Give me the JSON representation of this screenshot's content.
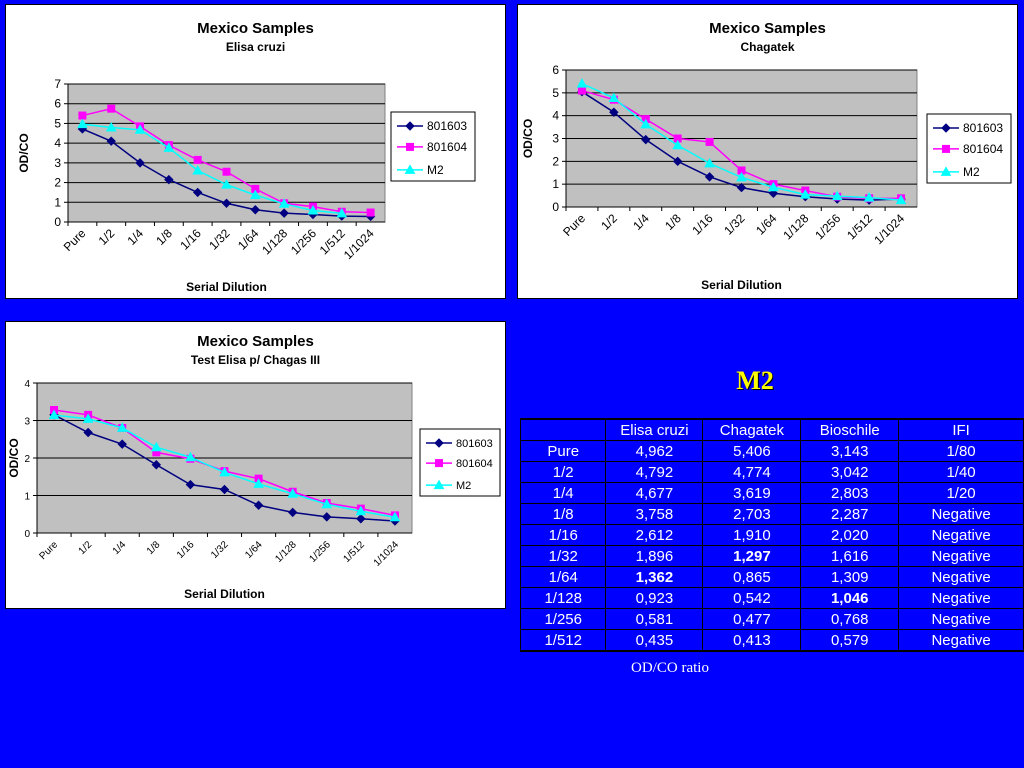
{
  "chart_data": [
    {
      "type": "line",
      "title": "Mexico Samples",
      "subtitle": "Elisa cruzi",
      "xlabel": "Serial Dilution",
      "ylabel": "OD/CO",
      "ylim": [
        0,
        7
      ],
      "yticks": [
        "0",
        "1",
        "2",
        "3",
        "4",
        "5",
        "6",
        "7"
      ],
      "categories": [
        "Pure",
        "1/2",
        "1/4",
        "1/8",
        "1/16",
        "1/32",
        "1/64",
        "1/128",
        "1/256",
        "1/512",
        "1/1024"
      ],
      "grid": true,
      "legend": "right",
      "series": [
        {
          "name": "801603",
          "color": "#000080",
          "marker": "diamond",
          "values": [
            4.72,
            4.1,
            3.0,
            2.15,
            1.5,
            0.95,
            0.62,
            0.45,
            0.38,
            0.3,
            0.28
          ]
        },
        {
          "name": "801604",
          "color": "#FF00FF",
          "marker": "square",
          "values": [
            5.4,
            5.75,
            4.85,
            3.9,
            3.15,
            2.55,
            1.68,
            0.95,
            0.78,
            0.52,
            0.48
          ]
        },
        {
          "name": "M2",
          "color": "#00FFFF",
          "marker": "triangle",
          "values": [
            4.962,
            4.792,
            4.677,
            3.758,
            2.612,
            1.896,
            1.362,
            0.923,
            0.581,
            0.435,
            null
          ]
        }
      ]
    },
    {
      "type": "line",
      "title": "Mexico Samples",
      "subtitle": "Chagatek",
      "xlabel": "Serial Dilution",
      "ylabel": "OD/CO",
      "ylim": [
        0,
        6
      ],
      "yticks": [
        "0",
        "1",
        "2",
        "3",
        "4",
        "5",
        "6"
      ],
      "categories": [
        "Pure",
        "1/2",
        "1/4",
        "1/8",
        "1/16",
        "1/32",
        "1/64",
        "1/128",
        "1/256",
        "1/512",
        "1/1024"
      ],
      "grid": true,
      "legend": "right",
      "series": [
        {
          "name": "801603",
          "color": "#000080",
          "marker": "diamond",
          "values": [
            5.05,
            4.15,
            2.95,
            2.0,
            1.32,
            0.85,
            0.6,
            0.45,
            0.35,
            0.3,
            0.35
          ]
        },
        {
          "name": "801604",
          "color": "#FF00FF",
          "marker": "square",
          "values": [
            5.1,
            4.7,
            3.85,
            3.0,
            2.85,
            1.6,
            1.0,
            0.72,
            0.45,
            0.38,
            0.38
          ]
        },
        {
          "name": "M2",
          "color": "#00FFFF",
          "marker": "triangle",
          "values": [
            5.406,
            4.774,
            3.619,
            2.703,
            1.91,
            1.297,
            0.865,
            0.542,
            0.477,
            0.413,
            0.3
          ]
        }
      ]
    },
    {
      "type": "line",
      "title": "Mexico Samples",
      "subtitle": "Test Elisa p/ Chagas III",
      "xlabel": "Serial Dilution",
      "ylabel": "OD/CO",
      "ylim": [
        0,
        4
      ],
      "yticks": [
        "0",
        "1",
        "2",
        "3",
        "4"
      ],
      "categories": [
        "Pure",
        "1/2",
        "1/4",
        "1/8",
        "1/16",
        "1/32",
        "1/64",
        "1/128",
        "1/256",
        "1/512",
        "1/1024"
      ],
      "grid": true,
      "legend": "right",
      "series": [
        {
          "name": "801603",
          "color": "#000080",
          "marker": "diamond",
          "values": [
            3.15,
            2.68,
            2.37,
            1.82,
            1.29,
            1.16,
            0.74,
            0.55,
            0.43,
            0.38,
            0.32
          ]
        },
        {
          "name": "801604",
          "color": "#FF00FF",
          "marker": "square",
          "values": [
            3.28,
            3.15,
            2.8,
            2.15,
            1.98,
            1.65,
            1.45,
            1.1,
            0.8,
            0.65,
            0.47
          ]
        },
        {
          "name": "M2",
          "color": "#00FFFF",
          "marker": "triangle",
          "values": [
            3.143,
            3.042,
            2.803,
            2.287,
            2.02,
            1.616,
            1.309,
            1.046,
            0.768,
            0.579,
            0.42
          ]
        }
      ]
    }
  ],
  "m2_title": "M2",
  "table": {
    "headers": [
      "",
      "Elisa cruzi",
      "Chagatek",
      "Bioschile",
      "IFI"
    ],
    "rows": [
      {
        "cells": [
          "Pure",
          "4,962",
          "5,406",
          "3,143",
          "1/80"
        ],
        "bold": []
      },
      {
        "cells": [
          "1/2",
          "4,792",
          "4,774",
          "3,042",
          "1/40"
        ],
        "bold": []
      },
      {
        "cells": [
          "1/4",
          "4,677",
          "3,619",
          "2,803",
          "1/20"
        ],
        "bold": []
      },
      {
        "cells": [
          "1/8",
          "3,758",
          "2,703",
          "2,287",
          "Negative"
        ],
        "bold": []
      },
      {
        "cells": [
          "1/16",
          "2,612",
          "1,910",
          "2,020",
          "Negative"
        ],
        "bold": []
      },
      {
        "cells": [
          "1/32",
          "1,896",
          "1,297",
          "1,616",
          "Negative"
        ],
        "bold": [
          2
        ]
      },
      {
        "cells": [
          "1/64",
          "1,362",
          "0,865",
          "1,309",
          "Negative"
        ],
        "bold": [
          1
        ]
      },
      {
        "cells": [
          "1/128",
          "0,923",
          "0,542",
          "1,046",
          "Negative"
        ],
        "bold": [
          3
        ]
      },
      {
        "cells": [
          "1/256",
          "0,581",
          "0,477",
          "0,768",
          "Negative"
        ],
        "bold": []
      },
      {
        "cells": [
          "1/512",
          "0,435",
          "0,413",
          "0,579",
          "Negative"
        ],
        "bold": []
      }
    ]
  },
  "table_caption": "OD/CO ratio"
}
